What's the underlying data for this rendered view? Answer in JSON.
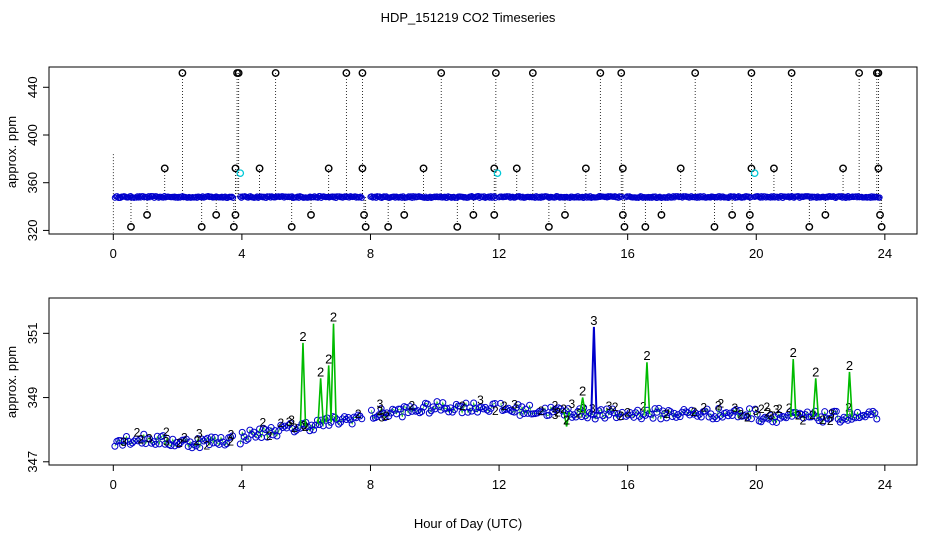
{
  "figure": {
    "title": "HDP_151219  CO2 Timeseries",
    "xlabel": "Hour of Day (UTC)"
  },
  "colors": {
    "axis": "#000000",
    "black_points": "#000000",
    "cyan_points": "#00c8d8",
    "blue_points": "#0000cc",
    "green_points": "#00bb00",
    "drop_lines": "#000000"
  },
  "chart_data": [
    {
      "type": "scatter",
      "name": "top-panel",
      "ylabel": "approx. ppm",
      "xlim": [
        -2,
        25
      ],
      "ylim": [
        317,
        457
      ],
      "xticks": [
        0,
        4,
        8,
        12,
        16,
        20,
        24
      ],
      "yticks": [
        320,
        360,
        400,
        440
      ],
      "xticklabels": [
        "0",
        "4",
        "8",
        "12",
        "16",
        "20",
        "24"
      ],
      "yticklabels": [
        "320",
        "360",
        "400",
        "440"
      ],
      "main_series": {
        "name": "CO2 (blue)",
        "segments": [
          [
            0.05,
            3.75
          ],
          [
            3.95,
            7.75
          ],
          [
            8.0,
            11.9
          ],
          [
            12.0,
            15.85
          ],
          [
            15.95,
            19.85
          ],
          [
            19.95,
            23.85
          ]
        ],
        "baseline": 348
      },
      "flag_high": [
        2.15,
        3.85,
        3.9,
        5.05,
        7.25,
        7.75,
        10.2,
        11.9,
        13.05,
        15.15,
        15.8,
        18.1,
        19.85,
        21.1,
        23.2,
        23.75,
        23.8
      ],
      "flag_mid": [
        1.6,
        3.8,
        4.55,
        6.7,
        7.75,
        9.65,
        11.85,
        12.55,
        14.7,
        15.85,
        17.65,
        19.85,
        20.55,
        22.7,
        23.8
      ],
      "flag_low1": [
        1.05,
        3.2,
        3.8,
        6.15,
        7.8,
        9.05,
        11.2,
        11.85,
        14.05,
        15.85,
        17.05,
        19.25,
        19.8,
        22.15,
        23.85
      ],
      "flag_low2": [
        0.55,
        2.75,
        3.75,
        5.55,
        7.85,
        8.55,
        10.7,
        13.55,
        15.9,
        16.55,
        18.7,
        19.8,
        21.65,
        23.9
      ],
      "cyan_points": [
        [
          3.95,
          368
        ],
        [
          11.95,
          368
        ],
        [
          19.95,
          368
        ]
      ],
      "high_value": 452,
      "mid_value": 372,
      "low1_value": 333,
      "low2_value": 323
    },
    {
      "type": "scatter",
      "name": "bottom-panel",
      "ylabel": "approx. ppm",
      "xlim": [
        -2,
        25
      ],
      "ylim": [
        346.9,
        352.1
      ],
      "xticks": [
        0,
        4,
        8,
        12,
        16,
        20,
        24
      ],
      "yticks": [
        347,
        349,
        351
      ],
      "xticklabels": [
        "0",
        "4",
        "8",
        "12",
        "16",
        "20",
        "24"
      ],
      "yticklabels": [
        "347",
        "349",
        "351"
      ],
      "marker_labels": {
        "green": "2",
        "blue": "3"
      },
      "spikes": [
        {
          "x": 5.9,
          "y": 350.7,
          "color": "green"
        },
        {
          "x": 6.45,
          "y": 349.6,
          "color": "green"
        },
        {
          "x": 6.7,
          "y": 350.0,
          "color": "green"
        },
        {
          "x": 6.85,
          "y": 351.3,
          "color": "green"
        },
        {
          "x": 14.95,
          "y": 351.2,
          "color": "blue"
        },
        {
          "x": 16.6,
          "y": 350.1,
          "color": "green"
        },
        {
          "x": 21.15,
          "y": 350.2,
          "color": "green"
        },
        {
          "x": 21.85,
          "y": 349.6,
          "color": "green"
        },
        {
          "x": 22.9,
          "y": 349.8,
          "color": "green"
        },
        {
          "x": 14.6,
          "y": 349.0,
          "color": "green"
        },
        {
          "x": 14.1,
          "y": 348.1,
          "color": "green"
        }
      ]
    }
  ]
}
